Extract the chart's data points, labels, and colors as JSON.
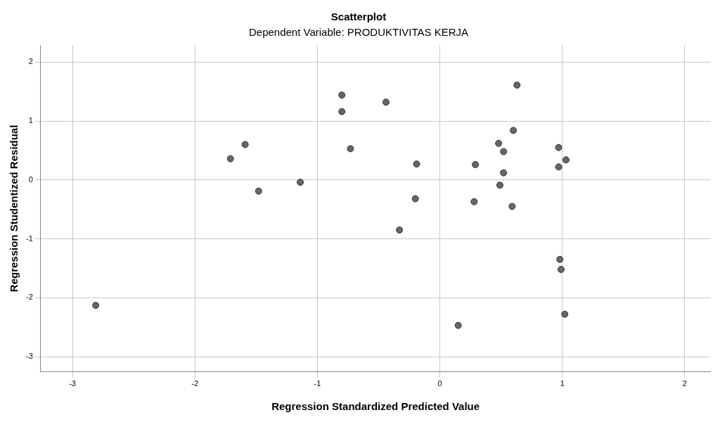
{
  "chart_data": {
    "type": "scatter",
    "title": "Scatterplot",
    "subtitle": "Dependent Variable: PRODUKTIVITAS KERJA",
    "xlabel": "Regression Standardized Predicted Value",
    "ylabel": "Regression Studentized Residual",
    "x": [
      -2.81,
      -1.71,
      -1.59,
      -1.48,
      -1.14,
      -0.8,
      -0.8,
      -0.73,
      -0.44,
      -0.2,
      -0.19,
      -0.33,
      0.15,
      0.29,
      0.28,
      0.63,
      0.6,
      0.48,
      0.52,
      0.52,
      0.49,
      0.59,
      0.97,
      0.97,
      1.03,
      0.98,
      0.99,
      1.02
    ],
    "values": [
      -2.13,
      0.36,
      0.6,
      -0.19,
      -0.04,
      1.44,
      1.16,
      0.53,
      1.32,
      -0.32,
      0.27,
      -0.85,
      -2.47,
      0.26,
      -0.37,
      1.61,
      0.84,
      0.62,
      0.48,
      0.12,
      -0.09,
      -0.45,
      0.55,
      0.22,
      0.34,
      -1.35,
      -1.52,
      -2.28
    ],
    "color": "#666666",
    "marker": "circle",
    "legend": false,
    "grid": true,
    "xlim": [
      -3.26,
      2.21
    ],
    "xticks": [
      -3,
      -2,
      -1,
      0,
      1,
      2
    ],
    "ylim": [
      -3.26,
      2.29
    ],
    "yticks": [
      -3,
      -2,
      -1,
      0,
      1,
      2
    ]
  }
}
